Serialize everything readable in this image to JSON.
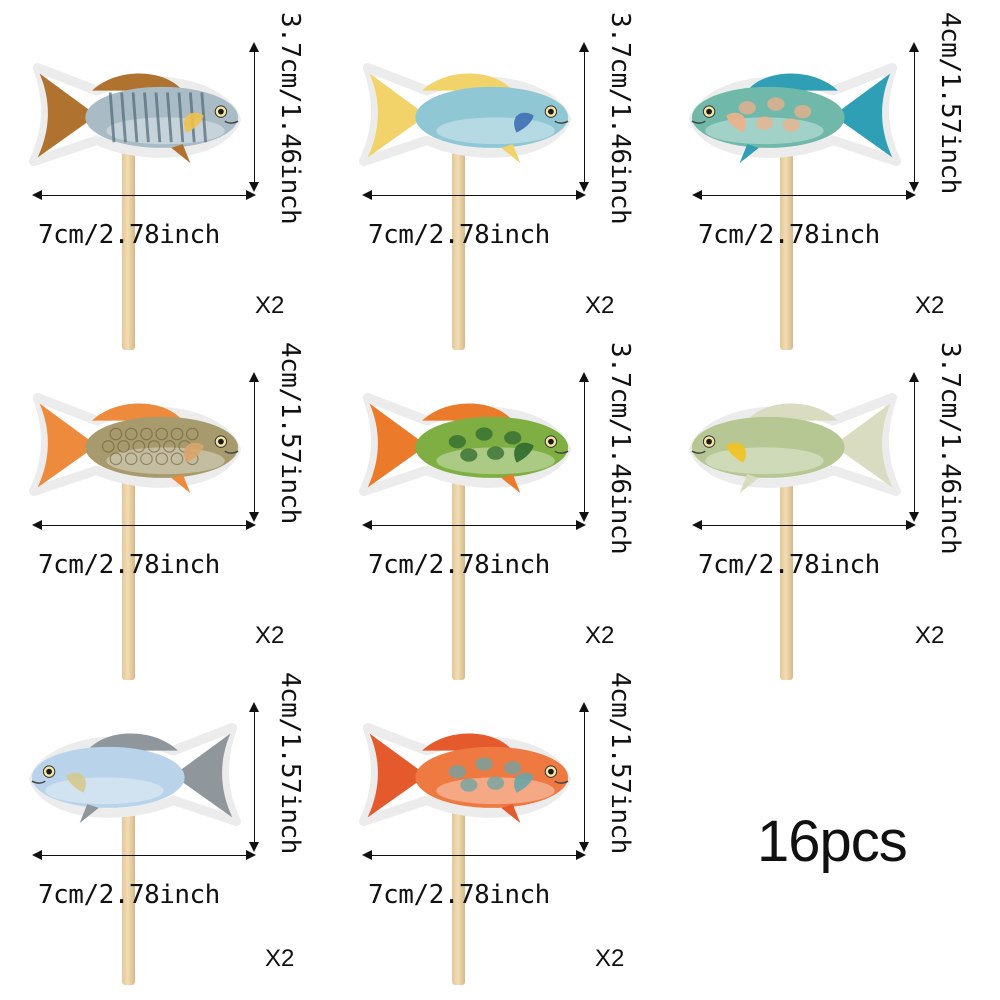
{
  "items": [
    {
      "width_label": "7cm/2.78inch",
      "height_label": "3.7cm/1.46inch",
      "quantity": "X2",
      "body_color": "#a9bcc6",
      "fin_color": "#b0722f",
      "accent_color": "#f0c04a",
      "pattern": "stripes"
    },
    {
      "width_label": "7cm/2.78inch",
      "height_label": "3.7cm/1.46inch",
      "quantity": "X2",
      "body_color": "#8fc7d4",
      "fin_color": "#f1d36a",
      "accent_color": "#3d6fb4",
      "pattern": "plain"
    },
    {
      "width_label": "7cm/2.78inch",
      "height_label": "4cm/1.57inch",
      "quantity": "X2",
      "body_color": "#6fb8aa",
      "fin_color": "#2f9fb5",
      "accent_color": "#f0b08a",
      "pattern": "spots"
    },
    {
      "width_label": "7cm/2.78inch",
      "height_label": "4cm/1.57inch",
      "quantity": "X2",
      "body_color": "#a79a6c",
      "fin_color": "#ee8a3c",
      "accent_color": "#d9a56e",
      "pattern": "scales"
    },
    {
      "width_label": "7cm/2.78inch",
      "height_label": "3.7cm/1.46inch",
      "quantity": "X2",
      "body_color": "#7fae43",
      "fin_color": "#ec7a2b",
      "accent_color": "#2f6a2f",
      "pattern": "spots"
    },
    {
      "width_label": "7cm/2.78inch",
      "height_label": "3.7cm/1.46inch",
      "quantity": "X2",
      "body_color": "#b6c794",
      "fin_color": "#d9dcc0",
      "accent_color": "#f2c21f",
      "pattern": "plain"
    },
    {
      "width_label": "7cm/2.78inch",
      "height_label": "4cm/1.57inch",
      "quantity": "X2",
      "body_color": "#b9d4ea",
      "fin_color": "#8f969c",
      "accent_color": "#d4c98e",
      "pattern": "plain"
    },
    {
      "width_label": "7cm/2.78inch",
      "height_label": "4cm/1.57inch",
      "quantity": "X2",
      "body_color": "#ee7a42",
      "fin_color": "#e55a2c",
      "accent_color": "#6aa4a8",
      "pattern": "spots"
    }
  ],
  "total_count": "16pcs"
}
